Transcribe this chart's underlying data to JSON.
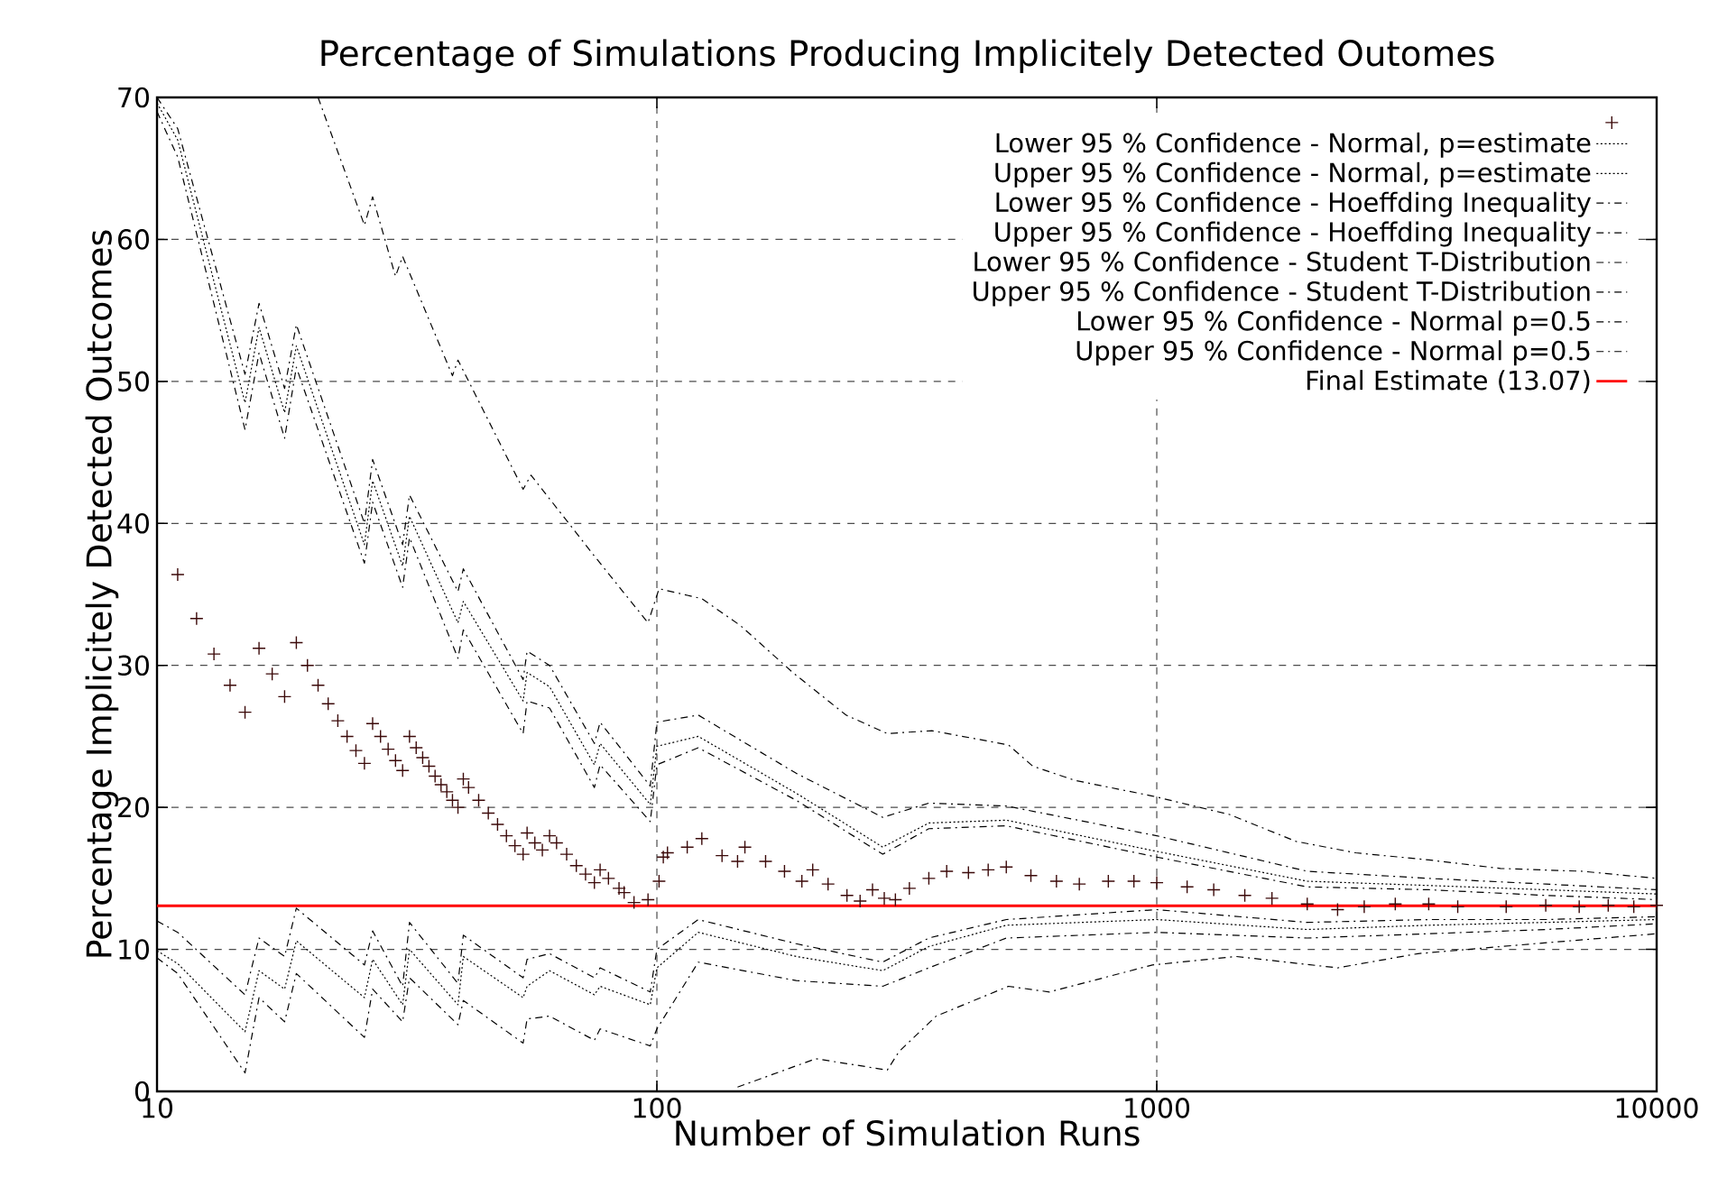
{
  "chart_data": {
    "type": "line",
    "title": "Percentage of Simulations Producing Implicitely Detected Outomes",
    "xlabel": "Number of Simulation Runs",
    "ylabel": "Percentage Implicitely Detected Outcomes",
    "log": "x",
    "xlim": [
      10,
      10000
    ],
    "xticks": [
      10,
      100,
      1000,
      10000
    ],
    "ylim": [
      0,
      70
    ],
    "yticks": [
      0,
      10,
      20,
      30,
      40,
      50,
      60,
      70
    ],
    "grid": true,
    "legend": "top right",
    "series": [
      {
        "type": "scatter",
        "marker": "cross",
        "color": "#3c0a0a",
        "x": [
          11,
          12,
          13,
          14,
          15,
          16,
          17,
          18,
          19,
          20,
          21,
          22,
          23,
          24,
          25,
          26,
          27,
          28,
          29,
          30,
          31,
          32,
          33,
          34,
          35,
          36,
          37,
          38,
          39,
          40,
          41,
          42,
          44,
          46,
          48,
          50,
          52,
          54,
          55,
          57,
          59,
          61,
          63,
          66,
          69,
          72,
          75,
          77,
          80,
          84,
          86,
          90,
          96,
          101,
          103,
          105,
          115,
          123,
          135,
          145,
          150,
          165,
          180,
          195,
          205,
          220,
          240,
          255,
          270,
          285,
          300,
          320,
          350,
          380,
          420,
          460,
          500,
          560,
          630,
          700,
          800,
          900,
          1000,
          1150,
          1300,
          1500,
          1700,
          2000,
          2300,
          2600,
          3000,
          3500,
          4000,
          5000,
          6000,
          7000,
          8000,
          9000,
          10000
        ],
        "values": [
          36.4,
          33.3,
          30.8,
          28.6,
          26.7,
          31.2,
          29.4,
          27.8,
          31.6,
          30,
          28.6,
          27.3,
          26.1,
          25,
          24,
          23.1,
          25.9,
          25,
          24.1,
          23.3,
          22.6,
          25,
          24.2,
          23.5,
          22.9,
          22.2,
          21.6,
          21.1,
          20.5,
          20,
          22,
          21.4,
          20.5,
          19.6,
          18.8,
          18,
          17.3,
          16.7,
          18.2,
          17.5,
          17,
          18,
          17.5,
          16.7,
          15.9,
          15.3,
          14.7,
          15.6,
          15,
          14.3,
          14,
          13.3,
          13.5,
          14.8,
          16.5,
          16.8,
          17.2,
          17.8,
          16.6,
          16.2,
          17.2,
          16.2,
          15.5,
          14.8,
          15.6,
          14.6,
          13.8,
          13.4,
          14.2,
          13.6,
          13.5,
          14.3,
          15,
          15.5,
          15.4,
          15.6,
          15.8,
          15.2,
          14.8,
          14.6,
          14.8,
          14.8,
          14.7,
          14.4,
          14.2,
          13.8,
          13.6,
          13.2,
          12.8,
          13,
          13.2,
          13.2,
          13,
          13,
          13.1,
          13,
          13.1,
          13,
          13.1
        ]
      },
      {
        "name": "Lower 95 % Confidence - Normal, p=estimate",
        "color": "#000000",
        "line_style": "dotted",
        "x": [
          10,
          11,
          15,
          16,
          18,
          19,
          26,
          27,
          31,
          32,
          40,
          41,
          54,
          55,
          61,
          75,
          77,
          97,
          100,
          121,
          190,
          283,
          350,
          500,
          1000,
          2000,
          3500,
          6000,
          10000
        ],
        "values": [
          9.9,
          9.0,
          4.2,
          8.5,
          7.2,
          10.6,
          6.6,
          9.3,
          6.1,
          10,
          6.1,
          9.5,
          6.6,
          7.4,
          8.5,
          6.8,
          7.4,
          6.1,
          8.7,
          11.2,
          9.5,
          8.5,
          10.2,
          11.7,
          12.1,
          11.4,
          11.7,
          11.9,
          12.1
        ]
      },
      {
        "name": "Upper 95 % Confidence - Normal, p=estimate",
        "color": "#000000",
        "line_style": "dotted",
        "x": [
          10,
          11,
          15,
          16,
          18,
          19,
          26,
          27,
          31,
          32,
          40,
          41,
          54,
          55,
          61,
          75,
          77,
          97,
          100,
          121,
          190,
          283,
          350,
          500,
          1000,
          2000,
          3500,
          6000,
          10000
        ],
        "values": [
          69.6,
          67,
          48.5,
          53.8,
          47.8,
          52.5,
          38.5,
          43,
          37,
          40.5,
          33,
          34.5,
          27.5,
          29.5,
          28.5,
          23,
          24.5,
          20.2,
          24.3,
          25,
          21,
          17.2,
          18.9,
          19.1,
          16.9,
          14.8,
          14.5,
          14.2,
          13.9
        ]
      },
      {
        "name": "Lower 95 % Confidence - Hoeffding Inequality",
        "color": "#000000",
        "line_style": "dashed",
        "x": [
          145,
          208,
          289,
          305,
          362,
          505,
          610,
          980,
          1440,
          2300,
          3330,
          5700,
          10000
        ],
        "values": [
          0.3,
          2.3,
          1.5,
          2.8,
          5.3,
          7.4,
          7.0,
          8.9,
          9.5,
          8.7,
          9.7,
          10.4,
          11.1
        ]
      },
      {
        "name": "Upper 95 % Confidence - Hoeffding Inequality",
        "color": "#000000",
        "line_style": "dashed",
        "x": [
          21,
          26,
          27,
          30,
          31,
          39,
          40,
          54,
          56,
          75,
          96,
          101,
          123,
          147,
          187,
          239,
          289,
          355,
          505,
          565,
          686,
          980,
          1398,
          1900,
          2500,
          3500,
          4870,
          7100,
          10000
        ],
        "values": [
          70,
          61,
          63,
          57.4,
          58.8,
          50.4,
          51.5,
          42.4,
          43.4,
          37.7,
          33,
          35.4,
          34.7,
          32.8,
          29.5,
          26.5,
          25.2,
          25.4,
          24.4,
          22.9,
          21.9,
          20.8,
          19.5,
          17.6,
          16.8,
          16.3,
          15.7,
          15.5,
          15
        ]
      },
      {
        "name": "Lower 95 % Confidence - Student T-Distribution",
        "color": "#000000",
        "line_style": "dashed",
        "x": [
          10,
          11,
          15,
          16,
          18,
          19,
          26,
          27,
          31,
          32,
          40,
          41,
          54,
          55,
          61,
          75,
          77,
          97,
          100,
          121,
          190,
          283,
          350,
          500,
          1000,
          2000,
          3500,
          6000,
          10000
        ],
        "values": [
          9.4,
          8.3,
          1.3,
          6.6,
          4.9,
          8.3,
          3.8,
          7.2,
          4.9,
          8.0,
          4.7,
          6.4,
          3.4,
          5.1,
          5.3,
          3.6,
          4.4,
          3.2,
          4.4,
          9.1,
          7.8,
          7.4,
          8.7,
          10.8,
          11.2,
          10.8,
          11.1,
          11.4,
          11.8
        ]
      },
      {
        "name": "Upper 95 % Confidence - Student T-Distribution",
        "color": "#000000",
        "line_style": "dashed",
        "x": [
          10,
          11,
          15,
          16,
          18,
          19,
          26,
          27,
          31,
          32,
          40,
          41,
          54,
          55,
          61,
          75,
          77,
          97,
          100,
          121,
          190,
          283,
          350,
          500,
          1000,
          2000,
          3500,
          6000,
          10000
        ],
        "values": [
          69,
          65.8,
          46.6,
          52,
          46,
          51,
          37.2,
          41.5,
          35.5,
          39,
          30.5,
          32.5,
          25.2,
          27.5,
          27,
          21.4,
          23,
          19,
          23,
          24.2,
          20.5,
          16.7,
          18.5,
          18.7,
          16.5,
          14.4,
          14.2,
          13.8,
          13.5
        ]
      },
      {
        "name": "Lower 95 % Confidence - Normal p=0.5",
        "color": "#000000",
        "line_style": "dashed",
        "x": [
          10,
          11,
          15,
          16,
          18,
          19,
          26,
          27,
          31,
          32,
          40,
          41,
          54,
          55,
          61,
          75,
          77,
          97,
          100,
          121,
          190,
          283,
          350,
          500,
          1000,
          2000,
          3500,
          6000,
          10000
        ],
        "values": [
          12,
          11.2,
          6.8,
          10.8,
          9.5,
          12.9,
          8.9,
          11.3,
          7.4,
          11.9,
          7.6,
          11,
          8,
          9.3,
          9.7,
          8,
          8.7,
          7,
          10,
          12.1,
          10.4,
          9.1,
          10.8,
          12.1,
          12.8,
          11.9,
          12.1,
          12.1,
          12.3
        ]
      },
      {
        "name": "Upper 95 % Confidence - Normal p=0.5",
        "color": "#000000",
        "line_style": "dashed",
        "x": [
          10,
          11,
          15,
          16,
          18,
          19,
          26,
          27,
          31,
          32,
          40,
          41,
          54,
          55,
          61,
          75,
          77,
          97,
          100,
          121,
          190,
          283,
          350,
          500,
          1000,
          2000,
          3500,
          6000,
          10000
        ],
        "values": [
          70,
          67.8,
          50.5,
          55.5,
          49.5,
          54,
          40,
          44.5,
          38.5,
          42,
          35.2,
          36.8,
          29,
          31,
          30,
          24.5,
          26,
          21.5,
          26,
          26.5,
          22.4,
          19.3,
          20.3,
          20.1,
          18,
          15.5,
          15,
          14.6,
          14.2
        ]
      },
      {
        "name": "Final Estimate (13.07)",
        "color": "#ff0000",
        "line_style": "solid",
        "x": [
          10,
          10000
        ],
        "values": [
          13.07,
          13.07
        ]
      }
    ]
  }
}
